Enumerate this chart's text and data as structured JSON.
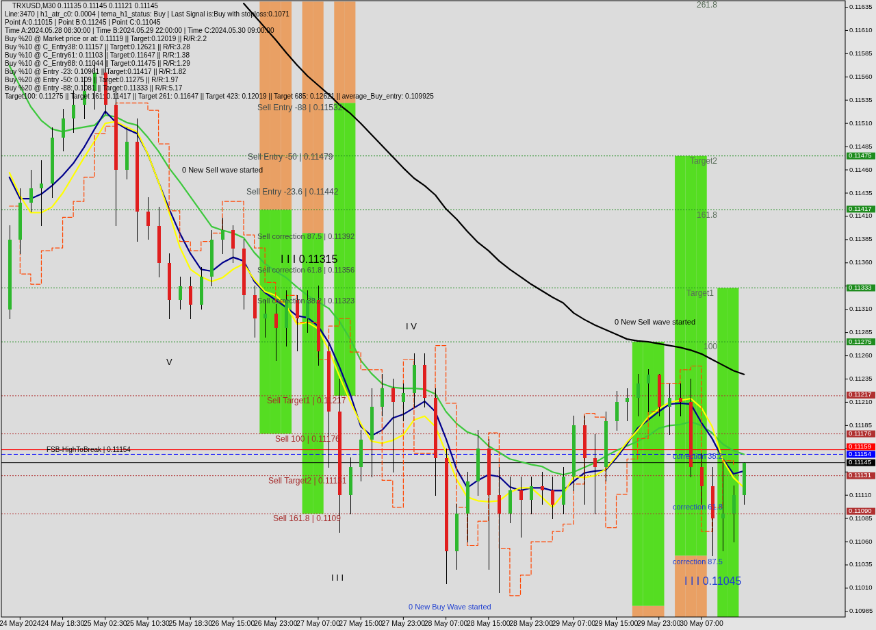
{
  "chart_data": {
    "type": "candlestick",
    "categories": [
      null,
      "24 May 2024",
      null,
      null,
      null,
      "24 May 18:30",
      null,
      null,
      null,
      "25 May 02:30",
      null,
      null,
      null,
      "25 May 10:30",
      null,
      null,
      null,
      "25 May 18:30",
      null,
      null,
      null,
      "26 May 15:00",
      null,
      null,
      null,
      "26 May 23:00",
      null,
      null,
      null,
      "27 May 07:00",
      null,
      null,
      null,
      "27 May 15:00",
      null,
      null,
      null,
      "27 May 23:00",
      null,
      null,
      null,
      "28 May 07:00",
      null,
      null,
      null,
      "28 May 15:00",
      null,
      null,
      null,
      "28 May 23:00",
      null,
      null,
      null,
      "29 May 07:00",
      null,
      null,
      null,
      "29 May 15:00",
      null,
      null,
      null,
      "29 May 23:00",
      null,
      null,
      null,
      "30 May 07:00",
      null,
      null,
      null,
      null,
      null,
      null,
      null,
      null,
      null,
      null,
      null,
      null,
      null
    ],
    "ohlc": [
      [
        0.1131,
        0.114,
        0.113,
        0.11385
      ],
      [
        0.11385,
        0.1144,
        0.1137,
        0.11425
      ],
      [
        0.11425,
        0.1146,
        0.11415,
        0.1144
      ],
      [
        0.1144,
        0.1147,
        0.114,
        0.11445
      ],
      [
        0.11445,
        0.11505,
        0.1143,
        0.11495
      ],
      [
        0.11495,
        0.11525,
        0.1148,
        0.11515
      ],
      [
        0.11515,
        0.11545,
        0.115,
        0.1153
      ],
      [
        0.1153,
        0.1156,
        0.11515,
        0.11545
      ],
      [
        0.11545,
        0.11575,
        0.11525,
        0.11565
      ],
      [
        0.11565,
        0.1159,
        0.1152,
        0.1153
      ],
      [
        0.1153,
        0.11545,
        0.114,
        0.1146
      ],
      [
        0.1146,
        0.11505,
        0.1145,
        0.1149
      ],
      [
        0.1149,
        0.11515,
        0.11383,
        0.11415
      ],
      [
        0.11415,
        0.1143,
        0.11385,
        0.114
      ],
      [
        0.114,
        0.1142,
        0.11345,
        0.1136
      ],
      [
        0.1136,
        0.1137,
        0.113,
        0.1132
      ],
      [
        0.1132,
        0.11345,
        0.1131,
        0.11335
      ],
      [
        0.11335,
        0.11345,
        0.113,
        0.11315
      ],
      [
        0.11315,
        0.11355,
        0.1131,
        0.11345
      ],
      [
        0.11345,
        0.11395,
        0.11335,
        0.11385
      ],
      [
        0.11385,
        0.11408,
        0.1137,
        0.11395
      ],
      [
        0.11395,
        0.114,
        0.1136,
        0.11375
      ],
      [
        0.11375,
        0.11385,
        0.1131,
        0.11325
      ],
      [
        0.11325,
        0.11335,
        0.1128,
        0.113
      ],
      [
        0.113,
        0.1132,
        0.1128,
        0.11305
      ],
      [
        0.11305,
        0.11315,
        0.11255,
        0.1129
      ],
      [
        0.1129,
        0.1133,
        0.1127,
        0.1132
      ],
      [
        0.1132,
        0.11325,
        0.11265,
        0.113
      ],
      [
        0.113,
        0.1133,
        0.11285,
        0.1132
      ],
      [
        0.1132,
        0.11335,
        0.1125,
        0.11265
      ],
      [
        0.11265,
        0.11275,
        0.1114,
        0.112
      ],
      [
        0.112,
        0.11235,
        0.1107,
        0.1111
      ],
      [
        0.1111,
        0.1115,
        0.1109,
        0.1114
      ],
      [
        0.1114,
        0.1118,
        0.11125,
        0.1117
      ],
      [
        0.1117,
        0.11225,
        0.1113,
        0.11205
      ],
      [
        0.11205,
        0.1124,
        0.11195,
        0.11225
      ],
      [
        0.11225,
        0.11235,
        0.11135,
        0.1121
      ],
      [
        0.1121,
        0.1123,
        0.1119,
        0.1122
      ],
      [
        0.1122,
        0.11262,
        0.11205,
        0.1125
      ],
      [
        0.1125,
        0.11262,
        0.11205,
        0.11215
      ],
      [
        0.11215,
        0.11225,
        0.1111,
        0.1115
      ],
      [
        0.1115,
        0.1116,
        0.11015,
        0.1105
      ],
      [
        0.1105,
        0.111,
        0.1103,
        0.1109
      ],
      [
        0.1109,
        0.11135,
        0.1106,
        0.11125
      ],
      [
        0.11125,
        0.1118,
        0.1111,
        0.1116
      ],
      [
        0.1116,
        0.1117,
        0.1103,
        0.1111
      ],
      [
        0.1111,
        0.1114,
        0.11005,
        0.1109
      ],
      [
        0.1109,
        0.1113,
        0.1108,
        0.11115
      ],
      [
        0.11115,
        0.1113,
        0.11065,
        0.11105
      ],
      [
        0.11105,
        0.1113,
        0.1109,
        0.1112
      ],
      [
        0.1112,
        0.11135,
        0.111,
        0.11115
      ],
      [
        0.11115,
        0.1113,
        0.11085,
        0.111
      ],
      [
        0.111,
        0.1114,
        0.1109,
        0.1113
      ],
      [
        0.1113,
        0.11195,
        0.11115,
        0.11185
      ],
      [
        0.11185,
        0.11195,
        0.111,
        0.1115
      ],
      [
        0.1115,
        0.11175,
        0.1109,
        0.1114
      ],
      [
        0.1114,
        0.112,
        0.11125,
        0.1119
      ],
      [
        0.1119,
        0.11222,
        0.1118,
        0.1121
      ],
      [
        0.1121,
        0.11225,
        0.1119,
        0.11215
      ],
      [
        0.11215,
        0.1124,
        0.11195,
        0.1123
      ],
      [
        0.1123,
        0.11245,
        0.112,
        0.1124
      ],
      [
        0.1124,
        0.1124,
        0.11195,
        0.11205
      ],
      [
        0.11205,
        0.1123,
        0.11175,
        0.11215
      ],
      [
        0.11215,
        0.1123,
        0.11195,
        0.1121
      ],
      [
        0.1121,
        0.11235,
        0.1113,
        0.1114
      ],
      [
        0.1114,
        0.11155,
        0.111,
        0.1112
      ],
      [
        0.1112,
        0.1114,
        0.11045,
        0.11085
      ],
      [
        0.11085,
        0.11145,
        0.1105,
        0.1109
      ],
      [
        0.1109,
        0.1112,
        0.1106,
        0.1111
      ],
      [
        0.1111,
        0.11145,
        0.111,
        0.11145
      ],
      null,
      null,
      null,
      null,
      null,
      null,
      null,
      null,
      null
    ],
    "colors": [
      "#2eb82e",
      "#2eb82e",
      "#2eb82e",
      "#2eb82e",
      "#2eb82e",
      "#2eb82e",
      "#2eb82e",
      "#2eb82e",
      "#2eb82e",
      "#e01e1e",
      "#e01e1e",
      "#2eb82e",
      "#e01e1e",
      "#e01e1e",
      "#e01e1e",
      "#e01e1e",
      "#2eb82e",
      "#e01e1e",
      "#2eb82e",
      "#2eb82e",
      "#2eb82e",
      "#e01e1e",
      "#e01e1e",
      "#e01e1e",
      "#2eb82e",
      "#e01e1e",
      "#2eb82e",
      "#e01e1e",
      "#2eb82e",
      "#e01e1e",
      "#e01e1e",
      "#e01e1e",
      "#2eb82e",
      "#2eb82e",
      "#2eb82e",
      "#2eb82e",
      "#e01e1e",
      "#2eb82e",
      "#2eb82e",
      "#e01e1e",
      "#e01e1e",
      "#e01e1e",
      "#2eb82e",
      "#2eb82e",
      "#2eb82e",
      "#e01e1e",
      "#e01e1e",
      "#2eb82e",
      "#e01e1e",
      "#2eb82e",
      "#e01e1e",
      "#e01e1e",
      "#2eb82e",
      "#2eb82e",
      "#e01e1e",
      "#e01e1e",
      "#2eb82e",
      "#2eb82e",
      "#2eb82e",
      "#2eb82e",
      "#2eb82e",
      "#e01e1e",
      "#2eb82e",
      "#e01e1e",
      "#e01e1e",
      "#e01e1e",
      "#e01e1e",
      "#2eb82e",
      "#2eb82e",
      "#2eb82e",
      null,
      null,
      null,
      null,
      null,
      null,
      null,
      null,
      null
    ],
    "series": [
      {
        "type": "bar",
        "color": "#e9a064",
        "base": [
          null,
          null,
          null,
          null,
          null,
          null,
          null,
          null,
          null,
          null,
          null,
          null,
          null,
          null,
          null,
          null,
          null,
          null,
          null,
          null,
          null,
          null,
          null,
          null,
          0.11417,
          0.11417,
          0.11417,
          null,
          0.11392,
          0.11392,
          null,
          0.11532,
          0.11532,
          null,
          null,
          null,
          null,
          null,
          null,
          null,
          null,
          null,
          null,
          null,
          null,
          null,
          null,
          null,
          null,
          null,
          null,
          null,
          null,
          null,
          null,
          null,
          null,
          null,
          null,
          0.10979,
          0.10979,
          0.10979,
          null,
          0.10979,
          0.10979,
          0.10979,
          null,
          null,
          null,
          null,
          null,
          null,
          null,
          null,
          null,
          null,
          null,
          null,
          null
        ],
        "values": [
          null,
          null,
          null,
          null,
          null,
          null,
          null,
          null,
          null,
          null,
          null,
          null,
          null,
          null,
          null,
          null,
          null,
          null,
          null,
          null,
          null,
          null,
          null,
          null,
          0.00224,
          0.00224,
          0.00224,
          null,
          0.00249,
          0.00249,
          null,
          0.00109,
          0.00109,
          null,
          null,
          null,
          null,
          null,
          null,
          null,
          null,
          null,
          null,
          null,
          null,
          null,
          null,
          null,
          null,
          null,
          null,
          null,
          null,
          null,
          null,
          null,
          null,
          null,
          null,
          0.00012,
          0.00012,
          0.00012,
          null,
          0.00066,
          0.00066,
          0.00066,
          null,
          null,
          null,
          null,
          null,
          null,
          null,
          null,
          null,
          null,
          null,
          null,
          null
        ]
      },
      {
        "type": "bar",
        "color": "#55dd22",
        "base": [
          null,
          null,
          null,
          null,
          null,
          null,
          null,
          null,
          null,
          null,
          null,
          null,
          null,
          null,
          null,
          null,
          null,
          null,
          null,
          null,
          null,
          null,
          null,
          null,
          0.11176,
          0.11176,
          0.11176,
          null,
          0.1109,
          0.1109,
          null,
          0.11217,
          0.11217,
          null,
          null,
          null,
          null,
          null,
          null,
          null,
          null,
          null,
          null,
          null,
          null,
          null,
          null,
          null,
          null,
          null,
          null,
          null,
          null,
          null,
          null,
          null,
          null,
          null,
          null,
          0.10991,
          0.10991,
          0.10991,
          null,
          0.11045,
          0.11045,
          0.11045,
          null,
          0.10979,
          0.10979,
          null,
          null,
          null,
          null,
          null,
          null,
          null,
          null,
          null,
          null
        ],
        "values": [
          null,
          null,
          null,
          null,
          null,
          null,
          null,
          null,
          null,
          null,
          null,
          null,
          null,
          null,
          null,
          null,
          null,
          null,
          null,
          null,
          null,
          null,
          null,
          null,
          0.00241,
          0.00241,
          0.00241,
          null,
          0.00302,
          0.00302,
          null,
          0.00315,
          0.00315,
          null,
          null,
          null,
          null,
          null,
          null,
          null,
          null,
          null,
          null,
          null,
          null,
          null,
          null,
          null,
          null,
          null,
          null,
          null,
          null,
          null,
          null,
          null,
          null,
          null,
          null,
          0.00284,
          0.00284,
          0.00284,
          null,
          0.0043,
          0.0043,
          0.0043,
          null,
          0.00354,
          0.00354,
          null,
          null,
          null,
          null,
          null,
          null,
          null,
          null,
          null,
          null
        ]
      },
      {
        "type": "line",
        "color": "#000000",
        "values": [
          null,
          null,
          null,
          null,
          null,
          null,
          null,
          null,
          null,
          null,
          null,
          null,
          null,
          null,
          null,
          null,
          null,
          null,
          null,
          null,
          null,
          null,
          0.11639,
          0.11626,
          0.11613,
          0.116,
          0.11586,
          0.11573,
          0.11561,
          0.11551,
          0.11541,
          0.1153,
          0.11521,
          0.1151,
          0.11498,
          0.11486,
          0.11474,
          0.11462,
          0.11451,
          0.11443,
          0.11433,
          0.11418,
          0.11407,
          0.11394,
          0.11382,
          0.11373,
          0.11362,
          0.11353,
          0.11345,
          0.11337,
          0.1133,
          0.11323,
          0.11317,
          0.11306,
          0.11299,
          0.11293,
          0.11288,
          0.11283,
          0.11278,
          0.11276,
          0.11275,
          0.11273,
          0.11271,
          0.11269,
          0.11266,
          0.11262,
          0.11256,
          0.1125,
          0.11244,
          0.1124,
          null,
          null,
          null,
          null,
          null,
          null,
          null,
          null,
          null
        ]
      },
      {
        "type": "line",
        "color": "#3cc83c",
        "values": [
          0.11572,
          0.1155,
          0.11528,
          0.11513,
          0.11504,
          0.11501,
          0.11504,
          0.11506,
          0.11508,
          0.11519,
          0.11517,
          0.11511,
          0.11508,
          0.11495,
          0.1148,
          0.11462,
          0.11447,
          0.11431,
          0.11415,
          0.11399,
          0.11395,
          0.11392,
          0.11387,
          0.11371,
          0.11359,
          0.11351,
          0.11344,
          0.11334,
          0.11325,
          0.11318,
          0.11311,
          0.11297,
          0.11278,
          0.11255,
          0.11241,
          0.1123,
          0.11226,
          0.11225,
          0.11225,
          0.11224,
          0.11219,
          0.112,
          0.11187,
          0.11178,
          0.11174,
          0.11163,
          0.11156,
          0.11149,
          0.11146,
          0.11143,
          0.11141,
          0.11135,
          0.11132,
          0.11135,
          0.1114,
          0.11145,
          0.11152,
          0.11158,
          0.11163,
          0.11168,
          0.11174,
          0.11182,
          0.11185,
          0.11186,
          0.11189,
          0.11185,
          0.11177,
          0.11165,
          0.11158,
          0.11154,
          null,
          null,
          null,
          null,
          null,
          null,
          null,
          null,
          null
        ]
      },
      {
        "type": "line",
        "color": "#00008b",
        "values": [
          0.11452,
          0.11429,
          0.11429,
          0.11434,
          0.11443,
          0.11454,
          0.11467,
          0.11484,
          0.11504,
          0.11523,
          0.11511,
          0.11504,
          0.11499,
          0.11477,
          0.11447,
          0.11418,
          0.11392,
          0.1137,
          0.11353,
          0.11351,
          0.1136,
          0.11366,
          0.11362,
          0.1134,
          0.11328,
          0.1132,
          0.11312,
          0.11303,
          0.11301,
          0.11292,
          0.11274,
          0.11248,
          0.11219,
          0.11184,
          0.11174,
          0.1118,
          0.11193,
          0.11197,
          0.11204,
          0.11211,
          0.112,
          0.11171,
          0.11138,
          0.11118,
          0.11126,
          0.11132,
          0.1113,
          0.11119,
          0.11115,
          0.11118,
          0.11118,
          0.11115,
          0.11115,
          0.11125,
          0.11134,
          0.11136,
          0.11137,
          0.1115,
          0.11165,
          0.11182,
          0.11191,
          0.112,
          0.11208,
          0.11209,
          0.11208,
          0.11188,
          0.11171,
          0.11149,
          0.11133,
          0.11136,
          null,
          null,
          null,
          null,
          null,
          null,
          null,
          null,
          null
        ]
      },
      {
        "type": "line",
        "color": "#ffff00",
        "values": [
          0.11457,
          0.11432,
          0.11414,
          0.11414,
          0.1142,
          0.11435,
          0.11454,
          0.11473,
          0.11491,
          0.1151,
          0.11512,
          0.11506,
          0.11501,
          0.11477,
          0.11447,
          0.11414,
          0.11377,
          0.11353,
          0.11345,
          0.1134,
          0.11344,
          0.11353,
          0.11359,
          0.11342,
          0.11329,
          0.11325,
          0.11314,
          0.11294,
          0.11296,
          0.11289,
          0.11266,
          0.11238,
          0.11211,
          0.11187,
          0.11168,
          0.11166,
          0.11169,
          0.11175,
          0.11191,
          0.11195,
          0.11184,
          0.11156,
          0.11127,
          0.11108,
          0.11104,
          0.11103,
          0.11104,
          0.11113,
          0.11118,
          0.11118,
          0.11108,
          0.11097,
          0.11111,
          0.1113,
          0.11129,
          0.11131,
          0.11138,
          0.11152,
          0.11167,
          0.1118,
          0.11194,
          0.11203,
          0.1121,
          0.11212,
          0.11214,
          0.11204,
          0.11184,
          0.11148,
          0.11129,
          0.11118,
          null,
          null,
          null,
          null,
          null,
          null,
          null,
          null,
          null
        ]
      },
      {
        "type": "step",
        "color": "#ff4500",
        "line_style": "dashed",
        "values": [
          0.11421,
          0.11348,
          0.11337,
          0.11373,
          0.11376,
          0.11409,
          0.11426,
          0.11452,
          0.11499,
          0.11507,
          0.11532,
          0.11532,
          0.11532,
          0.11524,
          0.11488,
          0.11416,
          0.11383,
          0.11373,
          0.11383,
          0.11392,
          0.11426,
          0.11426,
          0.1139,
          0.11376,
          0.11339,
          0.11318,
          0.11325,
          0.11296,
          0.11296,
          0.11256,
          0.11292,
          0.113,
          0.11264,
          0.11245,
          0.11245,
          0.11126,
          0.11097,
          0.11256,
          0.11155,
          0.11155,
          0.11271,
          0.11209,
          0.11097,
          0.11056,
          0.11082,
          0.11177,
          0.11053,
          0.11002,
          0.11024,
          0.1106,
          0.1106,
          0.11071,
          0.11079,
          0.11122,
          0.11198,
          0.11194,
          0.11075,
          0.11111,
          0.11149,
          0.11171,
          0.112,
          0.1123,
          0.1123,
          0.11245,
          0.11249,
          0.11071,
          0.11097,
          0.11147,
          0.11141,
          null,
          null,
          null,
          null,
          null,
          null,
          null,
          null,
          null,
          null
        ]
      }
    ],
    "ylim": [
      0.10979,
      0.11642
    ],
    "yticks": [
      0.10985,
      {
        "value": 0.1101,
        "label": "0.11010"
      },
      0.11035,
      {
        "value": 0.1106,
        "label": "0.11060"
      },
      0.11085,
      {
        "value": 0.1111,
        "label": "0.11110"
      },
      {
        "value": 0.11135,
        "label": null
      },
      {
        "value": 0.1116,
        "label": null
      },
      0.11185,
      {
        "value": 0.1121,
        "label": "0.11210"
      },
      0.11235,
      {
        "value": 0.1126,
        "label": "0.11260"
      },
      0.11285,
      {
        "value": 0.1131,
        "label": "0.11310"
      },
      {
        "value": 0.11335,
        "label": null
      },
      {
        "value": 0.1136,
        "label": "0.11360"
      },
      0.11385,
      {
        "value": 0.1141,
        "label": "0.11410"
      },
      0.11435,
      {
        "value": 0.1146,
        "label": "0.11460"
      },
      0.11485,
      {
        "value": 0.1151,
        "label": "0.11510"
      },
      0.11535,
      {
        "value": 0.1156,
        "label": "0.11560"
      },
      0.11585,
      {
        "value": 0.1161,
        "label": "0.11610"
      },
      0.11635
    ],
    "ref_lines": [
      {
        "axis": "y",
        "value": 0.11475,
        "label": "0.11475",
        "color": "#1e8c1e",
        "line_style": "dotted"
      },
      {
        "axis": "y",
        "value": 0.11417,
        "label": "0.11417",
        "color": "#1e8c1e",
        "line_style": "dotted"
      },
      {
        "axis": "y",
        "value": 0.11333,
        "label": "0.11333",
        "color": "#1e8c1e",
        "line_style": "dotted"
      },
      {
        "axis": "y",
        "value": 0.11275,
        "label": "0.11275",
        "color": "#1e8c1e",
        "line_style": "dotted"
      },
      {
        "axis": "y",
        "value": 0.11217,
        "label": "0.11217",
        "color": "#b03030",
        "line_style": "dotted"
      },
      {
        "axis": "y",
        "value": 0.11176,
        "label": "0.11176",
        "color": "#b03030",
        "line_style": "dotted"
      },
      {
        "axis": "y",
        "value": 0.11159,
        "label": "0.11159",
        "color": "#ff0000",
        "line_style": "solid"
      },
      {
        "axis": "y",
        "value": 0.11154,
        "label": "0.11154",
        "color": "#0000ff",
        "line_style": "dashed"
      },
      {
        "axis": "y",
        "value": 0.11145,
        "label": "0.11145",
        "color": "#000000",
        "line_style": "solid"
      },
      {
        "axis": "y",
        "value": 0.11131,
        "label": "0.11131",
        "color": "#b03030",
        "line_style": "dotted"
      },
      {
        "axis": "y",
        "value": 0.1109,
        "label": "0.11090",
        "color": "#b03030",
        "line_style": "dotted"
      }
    ],
    "annotations": [
      "TRXUSD,M30  0.11135 0.11145 0.11121 0.11145",
      "Line:3470 | h1_atr_c0: 0.0004 | tema_h1_status: Buy | Last Signal is:Buy with stoploss:0.1071",
      "Point A:0.11015 | Point B:0.11245 | Point C:0.11045",
      "Time A:2024.05.28 08:30:00 | Time B:2024.05.29 22:00:00 | Time C:2024.05.30 09:00:00",
      "Buy %20 @ Market price or at: 0.11119 || Target:0.12019 || R/R:2.2",
      "Buy %10 @ C_Entry38: 0.11157 || Target:0.12621 || R/R:3.28",
      "Buy %10 @ C_Entry61: 0.11103 || Target:0.11647 || R/R:1.38",
      "Buy %10 @ C_Entry88: 0.11044 || Target:0.11475 || R/R:1.29",
      "Buy %10 @ Entry -23: 0.10961 || Target:0.11417 || R/R:1.82",
      "Buy %20 @ Entry -50: 0.109 || Target:0.11275 || R/R:1.97",
      "Buy %20 @ Entry -88: 0.1081 || Target:0.11333 || R/R:5.17",
      "Target100: 0.11275 || Target 161: 0.11417 || Target 261: 0.11647 || Target 423: 0.12019 || Target 685: 0.12621 || average_Buy_entry: 0.109925",
      {
        "text": "Sell Entry -88 | 0.11532",
        "y": 0.11532
      },
      {
        "text": "Sell Entry -50 | 0.11479",
        "y": 0.11479
      },
      {
        "text": "Sell Entry -23.6 | 0.11442",
        "y": 0.11442
      },
      {
        "text": "Sell correction 87.5 | 0.11392",
        "y": 0.11392
      },
      "Sell correction 61.8 | 0.11356",
      "Sell correction 38.2 | 0.11323",
      {
        "text": "Sell Target1 | 0.11217",
        "y": 0.11217
      },
      {
        "text": "Sell 100 | 0.11176",
        "y": 0.11176
      },
      {
        "text": "Sell Target2 | 0.11131",
        "y": 0.11131
      },
      {
        "text": "Sell 161.8 | 0.1109",
        "y": 0.1109
      },
      {
        "text": "Target2",
        "y": 0.11475
      },
      {
        "text": "161.8",
        "y": 0.11417
      },
      {
        "text": "Target1",
        "y": 0.11333
      },
      {
        "text": "100",
        "y": 0.11275
      },
      {
        "text": "correction 38.2",
        "y": 0.11157
      },
      {
        "text": "correction 61.8",
        "y": 0.11103
      },
      {
        "text": "correction 87.5",
        "y": 0.11044
      },
      {
        "text": "FSB-HighToBreak | 0.11154",
        "y": 0.11154
      },
      "0 New Sell wave started",
      "I I I 0.11315",
      "V",
      "I V",
      "I I I",
      "0 New Buy Wave started",
      "0 New Sell wave started",
      "I I I 0.11045",
      "261.8"
    ]
  }
}
